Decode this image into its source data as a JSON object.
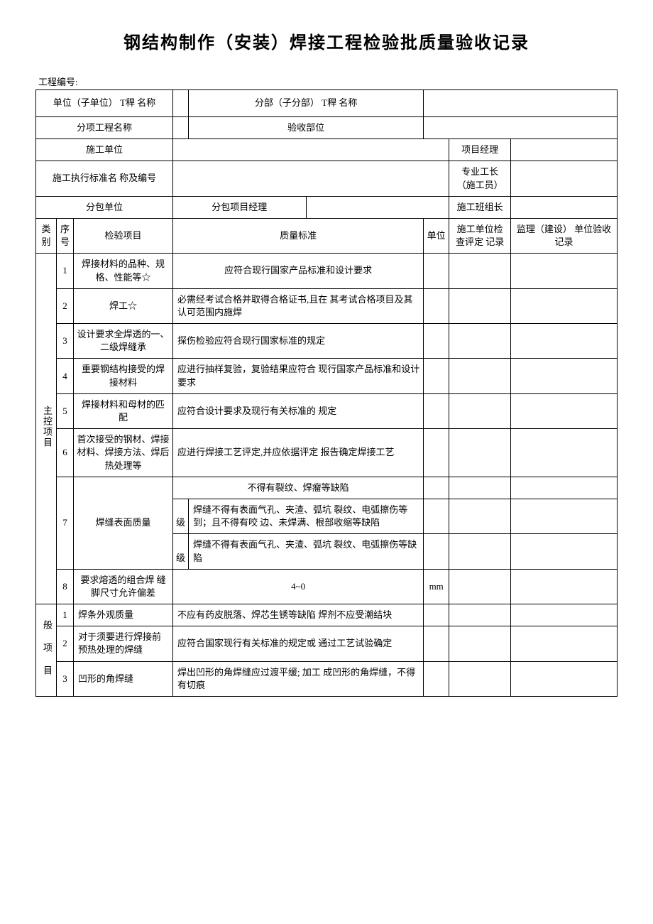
{
  "title": "钢结构制作（安装）焊接工程检验批质量验收记录",
  "project_number_label": "工程编号:",
  "header": {
    "unit_name_label": "单位（子单位） T稈 名称",
    "subpart_name_label": "分部（子分部） T稈 名称",
    "subitem_name_label": "分项工程名称",
    "accept_part_label": "验收部位",
    "construction_unit_label": "施工单位",
    "project_manager_label": "项目经理",
    "standard_label": "施工执行标准名 称及编号",
    "pro_foreman_label": "专业工长 （施工员）",
    "subcontract_unit_label": "分包单位",
    "subcontract_pm_label": "分包项目经理",
    "team_leader_label": "施工班组长"
  },
  "columns": {
    "category": "类 别",
    "seq": "序号",
    "check_item": "检验项目",
    "quality_std": "质量标准",
    "unit": "单位",
    "construction_record": "施工单位检查评定 记录",
    "supervision_record": "监理（建设） 单位验收记录"
  },
  "categories": {
    "main": "主控项目",
    "general": "般 项 目"
  },
  "main_rows": [
    {
      "seq": "1",
      "item": "焊接材料的品种、规 格、性能等☆",
      "std": "应符合现行国家产品标准和设计要求",
      "unit": ""
    },
    {
      "seq": "2",
      "item": "焊工☆",
      "std": "必需经考试合格并取得合格证书,且在 其考试合格项目及其认可范围内施焊",
      "unit": ""
    },
    {
      "seq": "3",
      "item": "设计要求全焊透的一、 二级焊缝承",
      "std": "探伤检验应符合现行国家标准的规定",
      "unit": ""
    },
    {
      "seq": "4",
      "item": "重要钢结构接受的焊 接材料",
      "std": "应进行抽样复验，复验结果应符合 现行国家产品标准和设计要求",
      "unit": ""
    },
    {
      "seq": "5",
      "item": "焊接材料和母材的匹 配",
      "std": "应符合设计要求及现行有关标准的 规定",
      "unit": ""
    },
    {
      "seq": "6",
      "item": "首次接受的钢材、焊接 材料、焊接方法、焊后 热处理等",
      "std": "应进行焊接工艺评定,并应依据评定 报告确定焊接工艺",
      "unit": ""
    }
  ],
  "row7": {
    "seq": "7",
    "item": "焊缝表面质量",
    "std_top": "不得有裂纹、焊瘤等缺陷",
    "grade_label_a": "级",
    "std_a": "焊缝不得有表面气孔、夹渣、弧坑 裂纹、电弧擦伤等到；且不得有咬 边、未焊满、根部收缩等缺陷",
    "grade_label_b": "级",
    "std_b": "焊缝不得有表面气孔、夹渣、弧坑 裂纹、电弧擦伤等缺陷"
  },
  "row8": {
    "seq": "8",
    "item": "要求熔透的组合焊 缝脚尺寸允许偏差",
    "std": "4~0",
    "unit": "mm"
  },
  "general_rows": [
    {
      "seq": "1",
      "item": "焊条外观质量",
      "std": "不应有药皮脱落、焊芯生锈等缺陷    焊剂不应受潮结块",
      "unit": ""
    },
    {
      "seq": "2",
      "item": "对于须要进行焊接前    预热处理的焊缝",
      "std": "应符合国家现行有关标准的规定或 通过工艺试验确定",
      "unit": ""
    },
    {
      "seq": "3",
      "item": "凹形的角焊缝",
      "std": "焊出凹形的角焊缝应过渡平缓; 加工    成凹形的角焊缝，不得有切痕",
      "unit": ""
    }
  ],
  "colors": {
    "border": "#000000",
    "background": "#ffffff",
    "text": "#000000"
  }
}
